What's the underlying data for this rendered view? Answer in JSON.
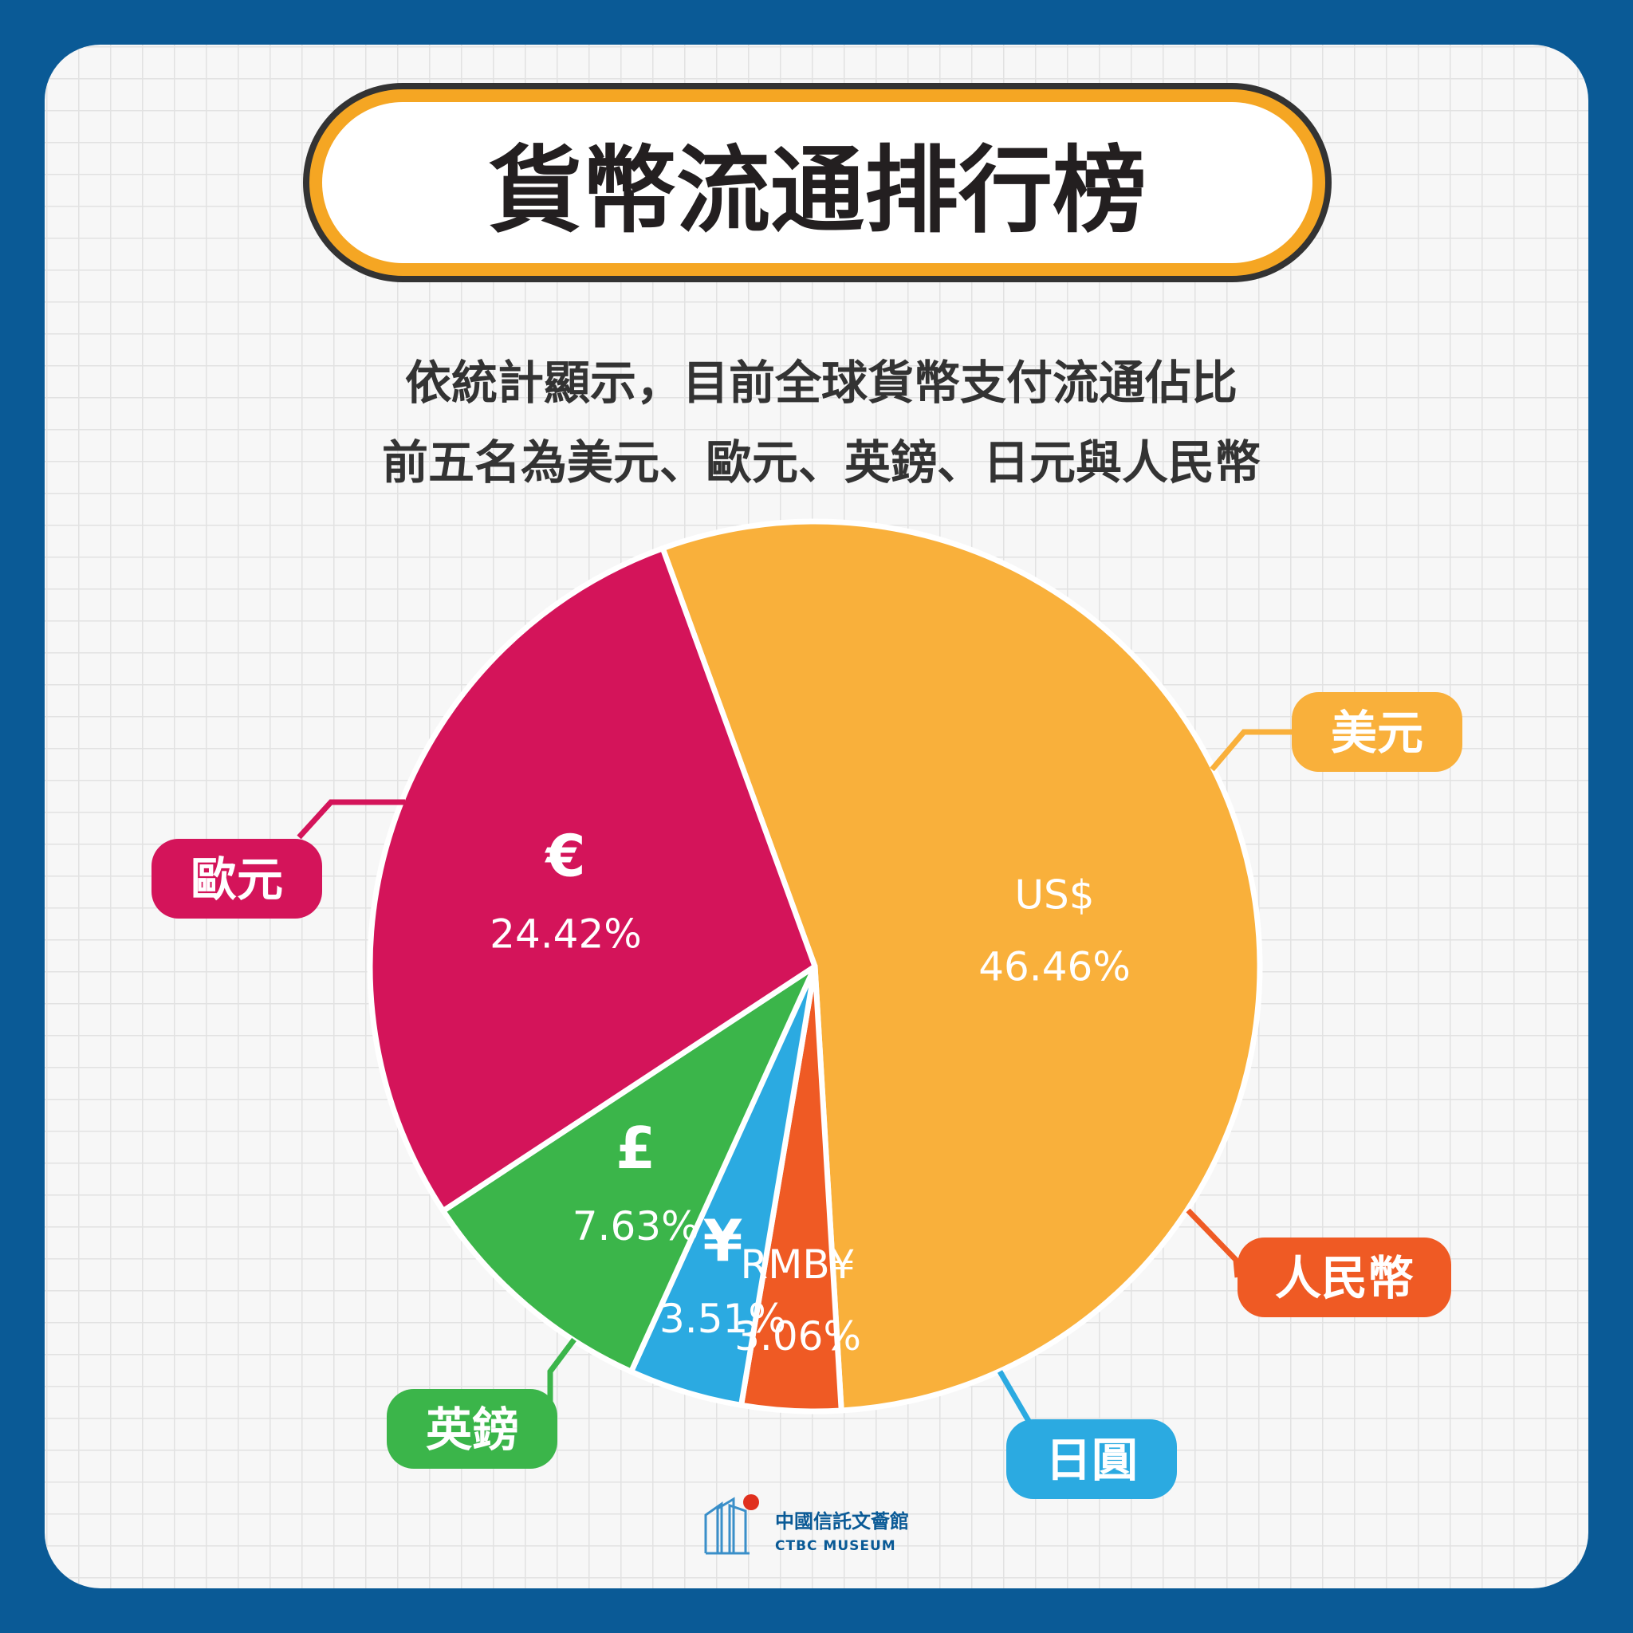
{
  "title": "貨幣流通排行榜",
  "subtitle": [
    "依統計顯示，目前全球貨幣支付流通佔比",
    "前五名為美元、歐元、英鎊、日元與人民幣"
  ],
  "logo": {
    "name": "中國信託文薈館",
    "english": "CTBC MUSEUM"
  },
  "colors": {
    "background": "#0a5a96",
    "card": "#f7f7f7",
    "grid": "#e2e2e2",
    "title_border": "#f5a623"
  },
  "chart_data": {
    "type": "pie",
    "title": "",
    "unit": "%",
    "slices": [
      {
        "name": "美元",
        "symbol": "US$",
        "value": 46.46,
        "label": "46.46%",
        "color": "#f9b03b"
      },
      {
        "name": "人民幣",
        "symbol": "RMB¥",
        "value": 3.06,
        "label": "3.06%",
        "color": "#ef5a24"
      },
      {
        "name": "日圓",
        "symbol": "¥",
        "value": 3.51,
        "label": "3.51%",
        "color": "#2baae1"
      },
      {
        "name": "英鎊",
        "symbol": "£",
        "value": 7.63,
        "label": "7.63%",
        "color": "#3bb54a"
      },
      {
        "name": "歐元",
        "symbol": "€",
        "value": 24.42,
        "label": "24.42%",
        "color": "#d4145a"
      }
    ]
  }
}
